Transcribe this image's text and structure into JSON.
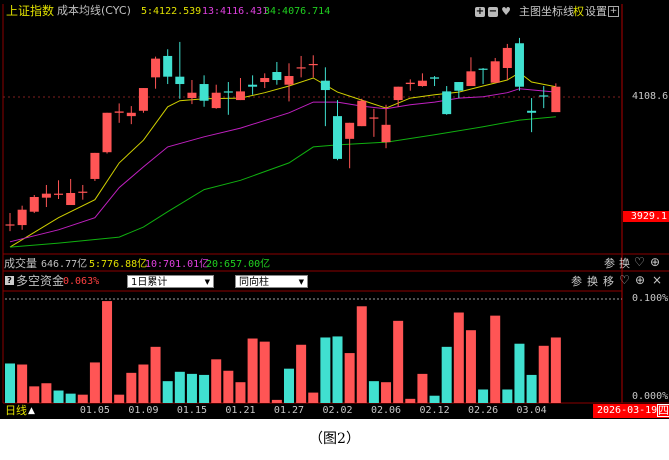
{
  "header": {
    "index_name": "上证指数",
    "indicator_name": "成本均线(CYC)",
    "ma5": "5:4122.539",
    "ma13": "13:4116.431",
    "ma34": "34:4076.714",
    "buttons": {
      "zoom_in": "+",
      "zoom_out": "−",
      "favorite": "♥",
      "main_chart": "主图",
      "crosshair": "坐标线",
      "rights": "权",
      "settings": "设置",
      "expand": "+"
    }
  },
  "volume_bar": {
    "label": "成交量",
    "value": "646.77亿",
    "ma5": "5:776.88亿",
    "ma10": "10:701.01亿",
    "ma20": "20:657.00亿",
    "buttons": {
      "params": "参",
      "switch": "换",
      "favorite": "♡",
      "zoom": "⊕"
    }
  },
  "sub_panel": {
    "help": "?",
    "label": "多空资金",
    "value": "0.063%",
    "dropdown1": "1日累计",
    "dropdown2": "同向柱",
    "buttons": {
      "params": "参",
      "switch": "换",
      "move": "移",
      "favorite": "♡",
      "zoom": "⊕",
      "close": "×"
    }
  },
  "right_axis": {
    "price_ref": "4108.6",
    "price_low": "3929.1",
    "pct_top": "0.100%",
    "pct_bottom": "0.000%"
  },
  "footer": {
    "period": "日线",
    "period_arrow": "▲",
    "current_date": "2026-03-19",
    "weekday": "四"
  },
  "caption": "（图2）",
  "colors": {
    "up": "#ff5555",
    "down": "#40e0d0",
    "ma5": "#d0d000",
    "ma13": "#c020c0",
    "ma34": "#10b010",
    "frame": "#8b0000"
  },
  "chart_data": [
    {
      "type": "candlestick",
      "title": "上证指数",
      "ylabel": "",
      "y_ref_labels": [
        4108.6,
        3929.1
      ],
      "x_ticks": [
        {
          "label": "01.05",
          "index": 7
        },
        {
          "label": "01.09",
          "index": 11
        },
        {
          "label": "01.15",
          "index": 15
        },
        {
          "label": "01.21",
          "index": 19
        },
        {
          "label": "01.27",
          "index": 23
        },
        {
          "label": "02.02",
          "index": 27
        },
        {
          "label": "02.06",
          "index": 31
        },
        {
          "label": "02.12",
          "index": 35
        },
        {
          "label": "02.26",
          "index": 39
        },
        {
          "label": "03.04",
          "index": 43
        }
      ],
      "ohlc": [
        [
          3917,
          3935,
          3908,
          3918
        ],
        [
          3917,
          3946,
          3910,
          3940
        ],
        [
          3937,
          3962,
          3935,
          3959
        ],
        [
          3958,
          3977,
          3944,
          3964
        ],
        [
          3963,
          3984,
          3956,
          3964
        ],
        [
          3947,
          3986,
          3947,
          3965
        ],
        [
          3966,
          3977,
          3955,
          3967
        ],
        [
          3986,
          4025,
          3983,
          4025
        ],
        [
          4026,
          4085,
          4024,
          4085
        ],
        [
          4085,
          4099,
          4070,
          4087
        ],
        [
          4080,
          4095,
          4068,
          4085
        ],
        [
          4088,
          4122,
          4085,
          4122
        ],
        [
          4138,
          4169,
          4121,
          4166
        ],
        [
          4170,
          4180,
          4128,
          4139
        ],
        [
          4139,
          4191,
          4106,
          4128
        ],
        [
          4107,
          4134,
          4098,
          4115
        ],
        [
          4128,
          4141,
          4094,
          4103
        ],
        [
          4092,
          4127,
          4091,
          4115
        ],
        [
          4117,
          4131,
          4082,
          4116
        ],
        [
          4104,
          4137,
          4104,
          4117
        ],
        [
          4127,
          4141,
          4112,
          4124
        ],
        [
          4131,
          4144,
          4122,
          4137
        ],
        [
          4146,
          4161,
          4127,
          4134
        ],
        [
          4127,
          4159,
          4102,
          4140
        ],
        [
          4152,
          4170,
          4138,
          4153
        ],
        [
          4157,
          4171,
          4138,
          4158
        ],
        [
          4133,
          4153,
          4065,
          4119
        ],
        [
          4080,
          4104,
          4014,
          4016
        ],
        [
          4046,
          4070,
          4002,
          4070
        ],
        [
          4065,
          4106,
          4065,
          4103
        ],
        [
          4077,
          4091,
          4049,
          4078
        ],
        [
          4041,
          4097,
          4032,
          4067
        ],
        [
          4104,
          4124,
          4094,
          4124
        ],
        [
          4128,
          4135,
          4118,
          4130
        ],
        [
          4125,
          4144,
          4124,
          4133
        ],
        [
          4138,
          4140,
          4125,
          4136
        ],
        [
          4117,
          4125,
          4082,
          4083
        ],
        [
          4131,
          4131,
          4107,
          4118
        ],
        [
          4125,
          4168,
          4125,
          4147
        ],
        [
          4151,
          4152,
          4128,
          4150
        ],
        [
          4130,
          4167,
          4130,
          4162
        ],
        [
          4152,
          4188,
          4134,
          4182
        ],
        [
          4189,
          4197,
          4118,
          4124
        ],
        [
          4088,
          4107,
          4056,
          4085
        ],
        [
          4111,
          4125,
          4092,
          4110
        ],
        [
          4086,
          4129,
          4086,
          4124
        ]
      ],
      "lines": [
        {
          "name": "5",
          "color": "#d0d000",
          "points": [
            [
              0,
              3884
            ],
            [
              4,
              3928
            ],
            [
              7,
              3955
            ],
            [
              9,
              4010
            ],
            [
              11,
              4044
            ],
            [
              13,
              4094
            ],
            [
              14,
              4103
            ],
            [
              16,
              4106
            ],
            [
              19,
              4107
            ],
            [
              21,
              4115
            ],
            [
              23,
              4125
            ],
            [
              25,
              4137
            ],
            [
              27,
              4116
            ],
            [
              29,
              4104
            ],
            [
              31,
              4092
            ],
            [
              33,
              4107
            ],
            [
              35,
              4112
            ],
            [
              37,
              4116
            ],
            [
              39,
              4125
            ],
            [
              41,
              4134
            ],
            [
              42,
              4145
            ],
            [
              43,
              4131
            ],
            [
              45,
              4124
            ]
          ]
        },
        {
          "name": "13",
          "color": "#c020c0",
          "points": [
            [
              0,
              3892
            ],
            [
              4,
              3910
            ],
            [
              7,
              3928
            ],
            [
              9,
              3973
            ],
            [
              11,
              4004
            ],
            [
              13,
              4034
            ],
            [
              16,
              4049
            ],
            [
              19,
              4062
            ],
            [
              23,
              4085
            ],
            [
              25,
              4101
            ],
            [
              27,
              4101
            ],
            [
              29,
              4095
            ],
            [
              31,
              4091
            ],
            [
              33,
              4097
            ],
            [
              35,
              4101
            ],
            [
              37,
              4107
            ],
            [
              39,
              4109
            ],
            [
              41,
              4115
            ],
            [
              42,
              4121
            ],
            [
              45,
              4116
            ]
          ]
        },
        {
          "name": "34",
          "color": "#10b010",
          "points": [
            [
              0,
              3884
            ],
            [
              4,
              3890
            ],
            [
              9,
              3899
            ],
            [
              11,
              3914
            ],
            [
              13,
              3937
            ],
            [
              16,
              3970
            ],
            [
              19,
              3984
            ],
            [
              23,
              4010
            ],
            [
              25,
              4034
            ],
            [
              27,
              4037
            ],
            [
              31,
              4041
            ],
            [
              35,
              4052
            ],
            [
              39,
              4064
            ],
            [
              42,
              4074
            ],
            [
              45,
              4079
            ]
          ]
        }
      ]
    },
    {
      "type": "bar",
      "title": "多空资金",
      "ylim": [
        0,
        0.1
      ],
      "unit": "%",
      "values": [
        0.038,
        0.037,
        0.016,
        0.019,
        0.012,
        0.009,
        0.008,
        0.039,
        0.098,
        0.008,
        0.029,
        0.037,
        0.054,
        0.021,
        0.03,
        0.028,
        0.027,
        0.042,
        0.031,
        0.02,
        0.062,
        0.059,
        0.003,
        0.033,
        0.056,
        0.01,
        0.063,
        0.064,
        0.048,
        0.093,
        0.021,
        0.02,
        0.079,
        0.004,
        0.028,
        0.007,
        0.054,
        0.087,
        0.07,
        0.013,
        0.084,
        0.013,
        0.057,
        0.027,
        0.055,
        0.063
      ],
      "directions": [
        "down",
        "up",
        "up",
        "up",
        "down",
        "down",
        "up",
        "up",
        "up",
        "up",
        "up",
        "up",
        "up",
        "down",
        "down",
        "down",
        "down",
        "up",
        "up",
        "up",
        "up",
        "up",
        "up",
        "down",
        "up",
        "up",
        "down",
        "down",
        "up",
        "up",
        "down",
        "up",
        "up",
        "up",
        "up",
        "down",
        "down",
        "up",
        "up",
        "down",
        "up",
        "down",
        "down",
        "down",
        "up",
        "up"
      ]
    }
  ]
}
